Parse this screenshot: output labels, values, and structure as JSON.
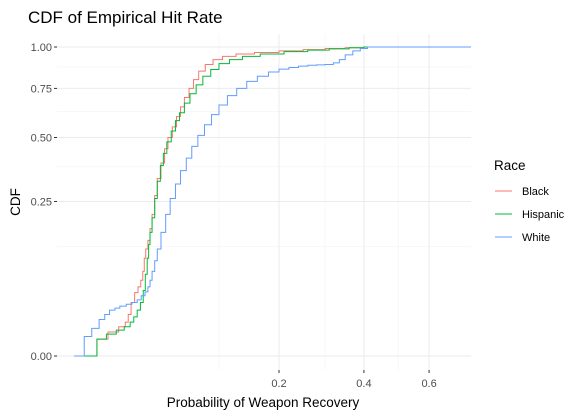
{
  "chart_data": {
    "type": "line",
    "subtype": "step-cdf",
    "title": "CDF of Empirical Hit Rate",
    "xlabel": "Probability of Weapon Recovery",
    "ylabel": "CDF",
    "x_scale": "sqrt",
    "y_scale": "sqrt",
    "xlim": [
      0,
      0.75
    ],
    "ylim": [
      0,
      1
    ],
    "x_ticks": [
      0.2,
      0.4,
      0.6
    ],
    "y_ticks": [
      0.0,
      0.25,
      0.5,
      0.75,
      1.0
    ],
    "x_tick_labels": [
      "0.2",
      "0.4",
      "0.6"
    ],
    "y_tick_labels": [
      "0.00",
      "0.25",
      "0.50",
      "0.75",
      "1.00"
    ],
    "grid": true,
    "legend": {
      "title": "Race",
      "position": "right"
    },
    "series": [
      {
        "name": "Black",
        "color": "#F8766D",
        "points": [
          [
            0.0,
            0.0
          ],
          [
            0.0025,
            0.003
          ],
          [
            0.0055,
            0.006
          ],
          [
            0.0095,
            0.009
          ],
          [
            0.0125,
            0.012
          ],
          [
            0.014,
            0.018
          ],
          [
            0.0155,
            0.03
          ],
          [
            0.0175,
            0.042
          ],
          [
            0.0195,
            0.05
          ],
          [
            0.0212,
            0.06
          ],
          [
            0.0225,
            0.075
          ],
          [
            0.0235,
            0.1
          ],
          [
            0.0245,
            0.12
          ],
          [
            0.026,
            0.14
          ],
          [
            0.0275,
            0.17
          ],
          [
            0.029,
            0.21
          ],
          [
            0.031,
            0.27
          ],
          [
            0.033,
            0.33
          ],
          [
            0.036,
            0.39
          ],
          [
            0.039,
            0.45
          ],
          [
            0.042,
            0.5
          ],
          [
            0.046,
            0.55
          ],
          [
            0.05,
            0.6
          ],
          [
            0.054,
            0.65
          ],
          [
            0.058,
            0.7
          ],
          [
            0.063,
            0.75
          ],
          [
            0.068,
            0.8
          ],
          [
            0.074,
            0.85
          ],
          [
            0.082,
            0.89
          ],
          [
            0.092,
            0.92
          ],
          [
            0.105,
            0.94
          ],
          [
            0.125,
            0.955
          ],
          [
            0.155,
            0.965
          ],
          [
            0.2,
            0.975
          ],
          [
            0.25,
            0.983
          ],
          [
            0.3,
            0.99
          ],
          [
            0.35,
            0.995
          ],
          [
            0.4,
            1.0
          ],
          [
            0.75,
            1.0
          ]
        ]
      },
      {
        "name": "Hispanic",
        "color": "#00BA38",
        "points": [
          [
            0.0,
            0.0
          ],
          [
            0.0025,
            0.003
          ],
          [
            0.005,
            0.005
          ],
          [
            0.0085,
            0.007
          ],
          [
            0.012,
            0.009
          ],
          [
            0.015,
            0.012
          ],
          [
            0.017,
            0.016
          ],
          [
            0.019,
            0.022
          ],
          [
            0.021,
            0.03
          ],
          [
            0.0228,
            0.045
          ],
          [
            0.0242,
            0.07
          ],
          [
            0.0255,
            0.1
          ],
          [
            0.0265,
            0.13
          ],
          [
            0.0275,
            0.16
          ],
          [
            0.029,
            0.2
          ],
          [
            0.031,
            0.26
          ],
          [
            0.033,
            0.32
          ],
          [
            0.0355,
            0.38
          ],
          [
            0.038,
            0.43
          ],
          [
            0.041,
            0.48
          ],
          [
            0.045,
            0.53
          ],
          [
            0.049,
            0.58
          ],
          [
            0.053,
            0.62
          ],
          [
            0.058,
            0.67
          ],
          [
            0.064,
            0.72
          ],
          [
            0.071,
            0.77
          ],
          [
            0.079,
            0.82
          ],
          [
            0.089,
            0.86
          ],
          [
            0.1,
            0.895
          ],
          [
            0.115,
            0.92
          ],
          [
            0.135,
            0.94
          ],
          [
            0.165,
            0.955
          ],
          [
            0.21,
            0.97
          ],
          [
            0.26,
            0.98
          ],
          [
            0.31,
            0.988
          ],
          [
            0.36,
            0.995
          ],
          [
            0.4,
            1.0
          ],
          [
            0.75,
            1.0
          ]
        ]
      },
      {
        "name": "White",
        "color": "#619CFF",
        "points": [
          [
            0.0,
            0.0
          ],
          [
            0.0005,
            0.004
          ],
          [
            0.0015,
            0.008
          ],
          [
            0.003,
            0.014
          ],
          [
            0.0045,
            0.018
          ],
          [
            0.006,
            0.022
          ],
          [
            0.008,
            0.024
          ],
          [
            0.01,
            0.026
          ],
          [
            0.013,
            0.028
          ],
          [
            0.016,
            0.03
          ],
          [
            0.019,
            0.033
          ],
          [
            0.0215,
            0.038
          ],
          [
            0.024,
            0.043
          ],
          [
            0.026,
            0.05
          ],
          [
            0.0275,
            0.06
          ],
          [
            0.029,
            0.075
          ],
          [
            0.031,
            0.095
          ],
          [
            0.033,
            0.12
          ],
          [
            0.036,
            0.16
          ],
          [
            0.04,
            0.21
          ],
          [
            0.044,
            0.26
          ],
          [
            0.049,
            0.31
          ],
          [
            0.054,
            0.36
          ],
          [
            0.06,
            0.41
          ],
          [
            0.066,
            0.46
          ],
          [
            0.073,
            0.51
          ],
          [
            0.081,
            0.56
          ],
          [
            0.09,
            0.61
          ],
          [
            0.1,
            0.66
          ],
          [
            0.112,
            0.71
          ],
          [
            0.126,
            0.75
          ],
          [
            0.142,
            0.79
          ],
          [
            0.16,
            0.82
          ],
          [
            0.18,
            0.845
          ],
          [
            0.2,
            0.862
          ],
          [
            0.22,
            0.872
          ],
          [
            0.24,
            0.88
          ],
          [
            0.26,
            0.885
          ],
          [
            0.28,
            0.888
          ],
          [
            0.3,
            0.89
          ],
          [
            0.32,
            0.9
          ],
          [
            0.335,
            0.92
          ],
          [
            0.35,
            0.95
          ],
          [
            0.37,
            0.975
          ],
          [
            0.39,
            0.99
          ],
          [
            0.41,
            1.0
          ],
          [
            0.75,
            1.0
          ]
        ]
      }
    ]
  }
}
